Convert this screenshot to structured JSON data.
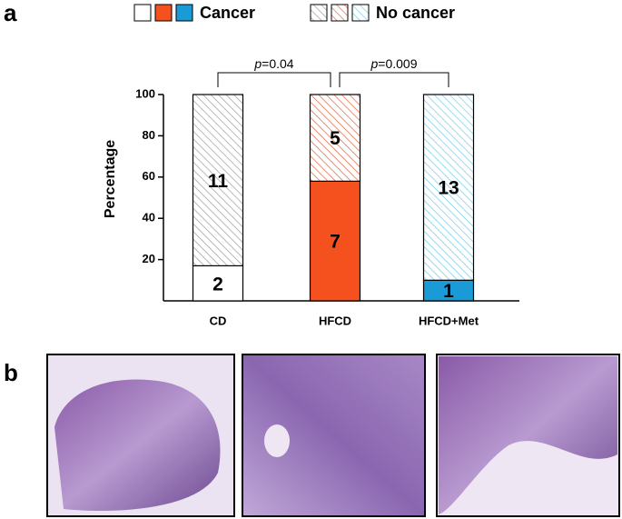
{
  "panel_a": {
    "label": "a"
  },
  "panel_b": {
    "label": "b"
  },
  "chart_data": {
    "type": "stacked_bar",
    "y_label": "Percentage",
    "categories": [
      "CD",
      "HFCD",
      "HFCD+Met"
    ],
    "series": [
      {
        "name": "Cancer",
        "colors": [
          "#ffffff",
          "#f4511e",
          "#1a9ad6"
        ],
        "hatched": false,
        "values": [
          17,
          58,
          10
        ],
        "counts": [
          "2",
          "7",
          "1"
        ]
      },
      {
        "name": "No cancer",
        "colors": [
          "#9a9a9a",
          "#e8633e",
          "#6fcbe6"
        ],
        "hatched": true,
        "values": [
          83,
          42,
          90
        ],
        "counts": [
          "11",
          "5",
          "13"
        ]
      }
    ],
    "ylim": [
      0,
      100
    ],
    "yticks": [
      20,
      40,
      60,
      80,
      100
    ],
    "annotations": [
      {
        "from": 0,
        "to": 1,
        "italic": "p",
        "text": "=0.04"
      },
      {
        "from": 1,
        "to": 2,
        "italic": "p",
        "text": "=0.009"
      }
    ]
  }
}
